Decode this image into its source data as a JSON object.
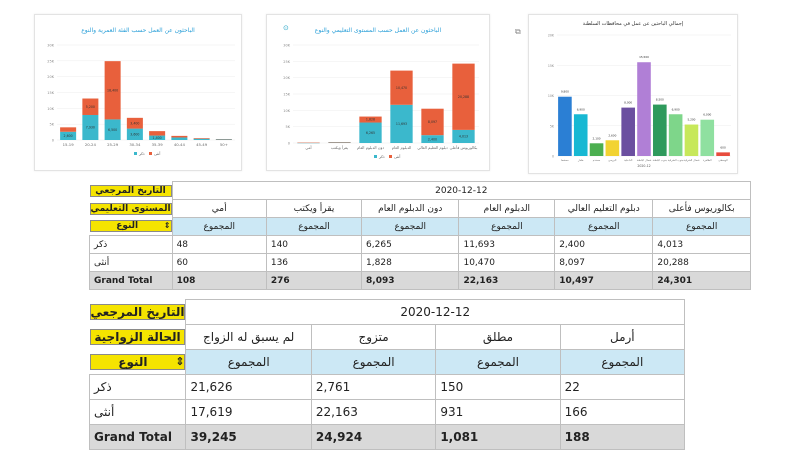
{
  "colors": {
    "female": "#e8603c",
    "male": "#3bb8cc",
    "accent": "#2a9fd8",
    "yellow": "#f5e400",
    "blue_header": "#cce8f5",
    "total_gray": "#d9d9d9"
  },
  "chart_data": [
    {
      "type": "bar",
      "title": "الباحثون عن العمل حسب الفئة العمرية والنوع",
      "categories": [
        "15-19",
        "20-24",
        "25-29",
        "30-34",
        "35-39",
        "40-44",
        "45-49",
        "50+"
      ],
      "ylim": [
        0,
        30
      ],
      "ytick_labels": [
        "0",
        "5K",
        "10K",
        "15K",
        "20K",
        "25K",
        "30K"
      ],
      "series": [
        {
          "name": "ذكر",
          "values": [
            2.6,
            7.9,
            6.5,
            3.6,
            1.4,
            0.8,
            0.4,
            0.2
          ],
          "labels": [
            "2,600",
            "7,930",
            "6,500",
            "3,600",
            "1,400",
            "",
            "",
            ""
          ]
        },
        {
          "name": "أنثى",
          "values": [
            1.4,
            5.2,
            18.4,
            3.4,
            1.4,
            0.5,
            0.2,
            0.1
          ],
          "labels": [
            "",
            "5,200",
            "18,400",
            "3,400",
            "",
            "",
            "",
            ""
          ]
        }
      ],
      "legend": "bottom"
    },
    {
      "type": "bar",
      "title": "الباحثون عن العمل حسب المستوى التعليمي والنوع",
      "categories": [
        "أمي",
        "يقرأ ويكتب",
        "دون الدبلوم العام",
        "الدبلوم العام",
        "دبلوم التعليم العالي",
        "بكالوريوس فأعلى"
      ],
      "ylim": [
        0,
        30
      ],
      "ytick_labels": [
        "0",
        "5K",
        "10K",
        "15K",
        "20K",
        "25K",
        "30K"
      ],
      "series": [
        {
          "name": "ذكر",
          "values": [
            0.048,
            0.14,
            6.265,
            11.693,
            2.4,
            4.013
          ],
          "labels": [
            "",
            "",
            "6,265",
            "11,693",
            "2,400",
            "4,013"
          ]
        },
        {
          "name": "أنثى",
          "values": [
            0.06,
            0.136,
            1.828,
            10.47,
            8.097,
            20.288
          ],
          "labels": [
            "",
            "",
            "1,828",
            "10,470",
            "8,097",
            "20,288"
          ]
        }
      ],
      "legend": "bottom"
    },
    {
      "type": "bar",
      "title": "إجمالي الباحثين عن عمل في محافظات السلطنة",
      "categories": [
        "مسقط",
        "ظفار",
        "مسندم",
        "البريمي",
        "الداخلية",
        "شمال الباطنة",
        "جنوب الباطنة",
        "جنوب الشرقية",
        "شمال الشرقية",
        "الظاهرة",
        "الوسطى"
      ],
      "ylim": [
        0,
        20
      ],
      "ytick_labels": [
        "0",
        "5K",
        "10K",
        "15K",
        "20K"
      ],
      "values": [
        9.8,
        6.9,
        2.1,
        2.6,
        8.0,
        15.5,
        8.5,
        6.9,
        5.2,
        6.0,
        0.6
      ],
      "bar_colors": [
        "#2b7fd4",
        "#17b8d3",
        "#4caf50",
        "#f2d332",
        "#6b4fa0",
        "#b07fd6",
        "#2e9a5c",
        "#7ed68a",
        "#c7e85a",
        "#8fe0a0",
        "#e84c3d"
      ],
      "value_labels": [
        "9,800",
        "6,900",
        "2,100",
        "2,600",
        "8,000",
        "15,500",
        "8,500",
        "6,900",
        "5,200",
        "6,000",
        "600"
      ],
      "xlabel": "2020-12"
    }
  ],
  "table1": {
    "ref_date_label": "التاريخ المرجعي",
    "edu_level_label": "المستوى التعليمي",
    "gender_label": "النوع",
    "date": "2020-12-12",
    "columns": [
      "بكالوريوس فأعلى",
      "دبلوم التعليم العالي",
      "الدبلوم العام",
      "دون الدبلوم العام",
      "يقرأ ويكتب",
      "أمي"
    ],
    "total_label": "المجموع",
    "rows": [
      {
        "label": "ذكر",
        "values": [
          "4,013",
          "2,400",
          "11,693",
          "6,265",
          "140",
          "48"
        ]
      },
      {
        "label": "أنثى",
        "values": [
          "20,288",
          "8,097",
          "10,470",
          "1,828",
          "136",
          "60"
        ]
      }
    ],
    "grand_total": {
      "label": "Grand Total",
      "values": [
        "24,301",
        "10,497",
        "22,163",
        "8,093",
        "276",
        "108"
      ]
    }
  },
  "table2": {
    "ref_date_label": "التاريخ المرجعي",
    "marital_label": "الحالة الزواجية",
    "gender_label": "النوع",
    "date": "2020-12-12",
    "columns": [
      "أرمل",
      "مطلق",
      "متزوج",
      "لم يسبق له الزواج"
    ],
    "total_label": "المجموع",
    "rows": [
      {
        "label": "ذكر",
        "values": [
          "22",
          "150",
          "2,761",
          "21,626"
        ]
      },
      {
        "label": "أنثى",
        "values": [
          "166",
          "931",
          "22,163",
          "17,619"
        ]
      }
    ],
    "grand_total": {
      "label": "Grand Total",
      "values": [
        "188",
        "1,081",
        "24,924",
        "39,245"
      ]
    }
  }
}
